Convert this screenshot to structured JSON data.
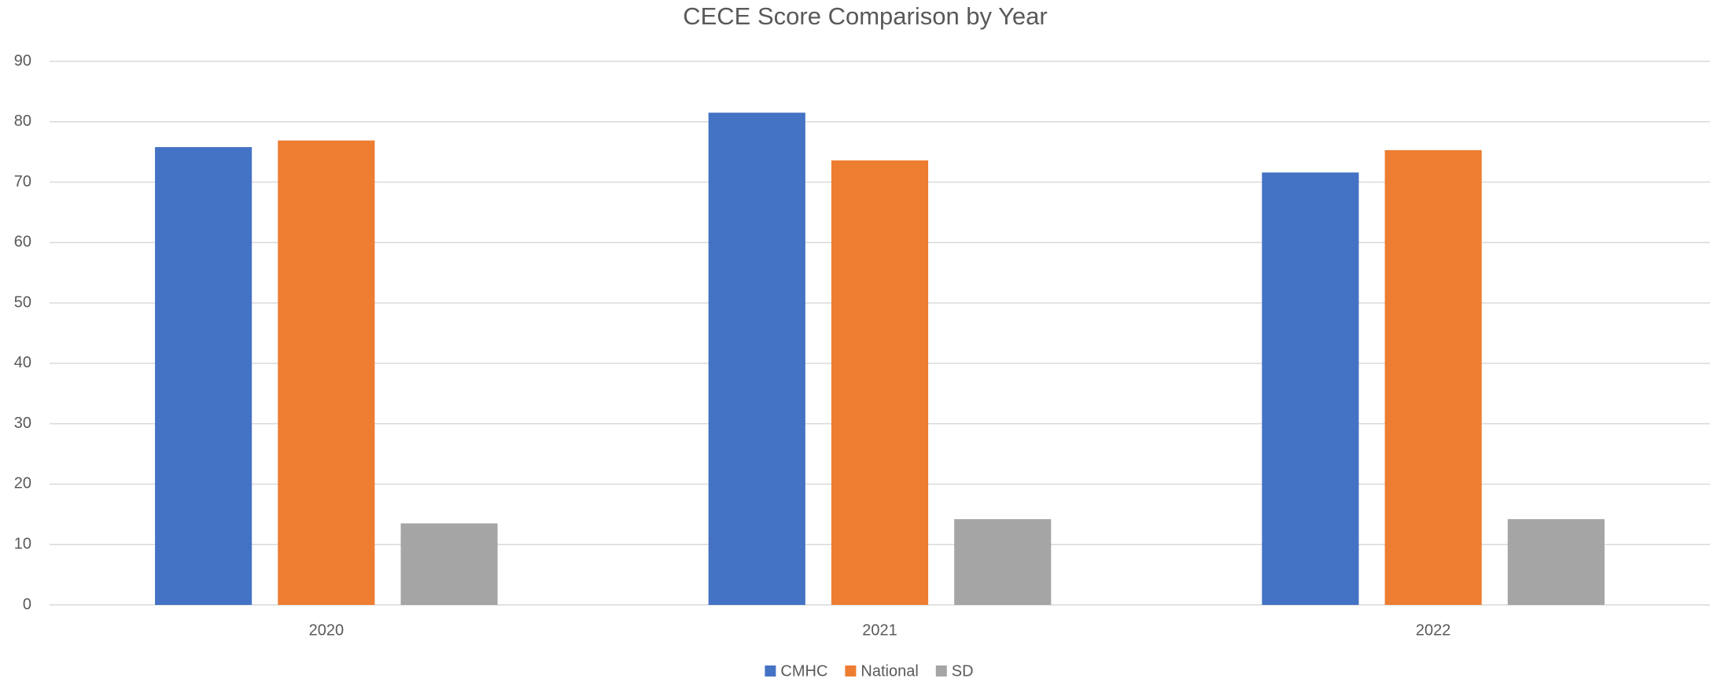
{
  "chart_data": {
    "type": "bar",
    "title": "CECE Score Comparison by Year",
    "categories": [
      "2020",
      "2021",
      "2022"
    ],
    "series": [
      {
        "name": "CMHC",
        "color": "#4472c4",
        "values": [
          75.8,
          81.5,
          71.6
        ]
      },
      {
        "name": "National",
        "color": "#ed7d31",
        "values": [
          76.9,
          73.6,
          75.3
        ]
      },
      {
        "name": "SD",
        "color": "#a5a5a5",
        "values": [
          13.5,
          14.2,
          14.2
        ]
      }
    ],
    "ylim": [
      0,
      90
    ],
    "yticks": [
      0,
      10,
      20,
      30,
      40,
      50,
      60,
      70,
      80,
      90
    ],
    "grid": true,
    "legend": "bottom"
  }
}
